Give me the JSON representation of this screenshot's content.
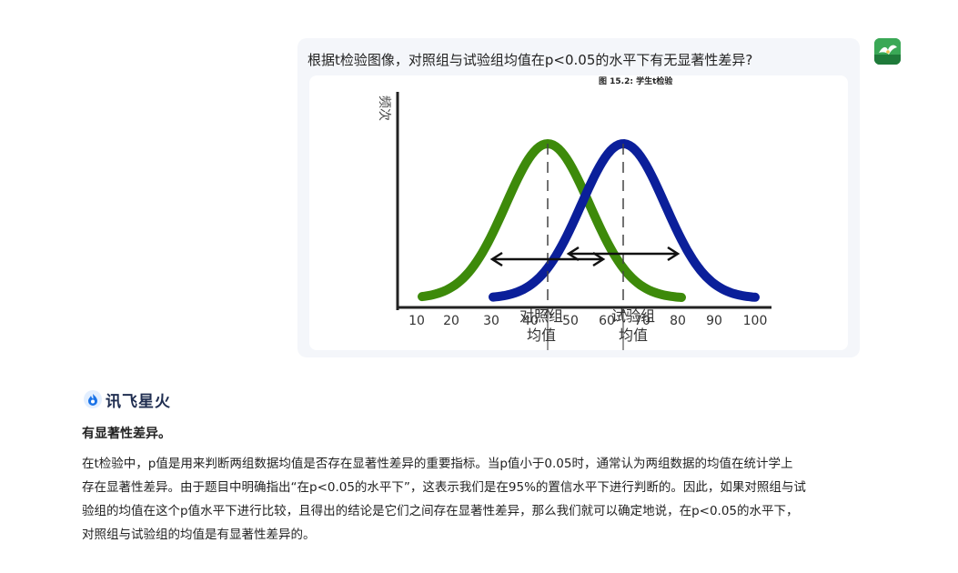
{
  "conversation": {
    "user_message": {
      "text": "根据t检验图像，对照组与试验组均值在p<0.05的水平下有无显著性差异?",
      "image": {
        "caption": "图 15.2: 学生t检验",
        "y_axis_label": "频次",
        "x_ticks": [
          "10",
          "20",
          "30",
          "40",
          "50",
          "60",
          "70",
          "80",
          "90",
          "100"
        ],
        "control_label": [
          "对照组",
          "均值"
        ],
        "treatment_label": [
          "试验组",
          "均值"
        ],
        "colors": {
          "control": "#3d8a0a",
          "treatment": "#0b1f9a",
          "axis": "#222222"
        },
        "control_mean": 45,
        "treatment_mean": 66
      }
    },
    "assistant": {
      "brand_name": "讯飞星火",
      "headline": "有显著性差异。",
      "body_lines": [
        "在t检验中，p值是用来判断两组数据均值是否存在显著性差异的重要指标。当p值小于0.05时，通常认为两组数据的均值在统计学上",
        "存在显著性差异。由于题目中明确指出“在p<0.05的水平下”，这表示我们是在95%的置信水平下进行判断的。因此，如果对照组与试",
        "验组的均值在这个p值水平下进行比较，且得出的结论是它们之间存在显著性差异，那么我们就可以确定地说，在p<0.05的水平下，",
        "对照组与试验组的均值是有显著性差异的。"
      ]
    }
  }
}
